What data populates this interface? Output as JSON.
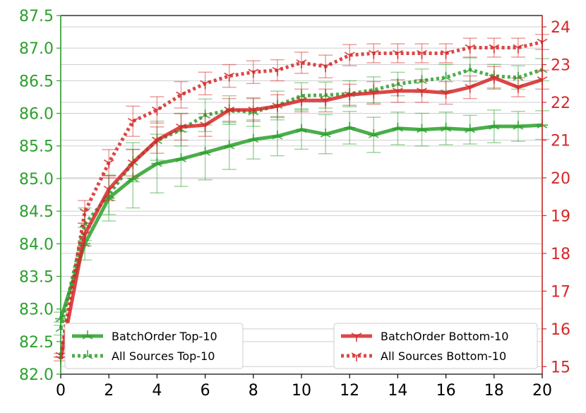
{
  "chart_data": {
    "type": "line",
    "title": "",
    "xlabel": "",
    "ylabel_left": "",
    "ylabel_right": "",
    "x": [
      0,
      1,
      2,
      3,
      4,
      5,
      6,
      7,
      8,
      9,
      10,
      11,
      12,
      13,
      14,
      15,
      16,
      17,
      18,
      19,
      20
    ],
    "xlim": [
      0,
      20
    ],
    "x_ticks": [
      0,
      2,
      4,
      6,
      8,
      10,
      12,
      14,
      16,
      18,
      20
    ],
    "ylim_left": [
      82.0,
      87.5
    ],
    "y_ticks_left": [
      82.0,
      82.5,
      83.0,
      83.5,
      84.0,
      84.5,
      85.0,
      85.5,
      86.0,
      86.5,
      87.0,
      87.5
    ],
    "ylim_right": [
      14.8,
      24.3
    ],
    "y_ticks_right": [
      15,
      16,
      17,
      18,
      19,
      20,
      21,
      22,
      23,
      24
    ],
    "grid": "horizontal",
    "colors": {
      "left_axis": "#2ca02c",
      "right_axis": "#d62728",
      "green": "#2ca02c",
      "red": "#d62728"
    },
    "series": [
      {
        "name": "BatchOrder Top-10",
        "axis": "left",
        "color": "#2ca02c",
        "style": "solid",
        "marker": "tri-x",
        "y": [
          82.85,
          84.0,
          84.7,
          85.0,
          85.23,
          85.3,
          85.4,
          85.5,
          85.6,
          85.65,
          85.75,
          85.68,
          85.78,
          85.67,
          85.77,
          85.75,
          85.77,
          85.75,
          85.8,
          85.8,
          85.82
        ],
        "err": [
          0.1,
          0.25,
          0.35,
          0.45,
          0.45,
          0.42,
          0.42,
          0.36,
          0.3,
          0.3,
          0.3,
          0.3,
          0.25,
          0.27,
          0.25,
          0.25,
          0.25,
          0.22,
          0.25,
          0.23,
          0.22
        ]
      },
      {
        "name": "All Sources Top-10",
        "axis": "left",
        "color": "#2ca02c",
        "style": "dotted",
        "marker": "tri-up",
        "y": [
          82.7,
          84.3,
          84.75,
          85.25,
          85.58,
          85.75,
          85.97,
          86.05,
          86.02,
          86.12,
          86.27,
          86.28,
          86.3,
          86.36,
          86.45,
          86.5,
          86.55,
          86.67,
          86.57,
          86.55,
          86.67
        ],
        "err": [
          0.1,
          0.25,
          0.3,
          0.3,
          0.3,
          0.25,
          0.25,
          0.22,
          0.22,
          0.22,
          0.2,
          0.2,
          0.2,
          0.2,
          0.18,
          0.18,
          0.2,
          0.18,
          0.18,
          0.18,
          0.17
        ]
      },
      {
        "name": "BatchOrder Bottom-10",
        "axis": "right",
        "color": "#d62728",
        "style": "solid",
        "marker": "tri-down",
        "y": [
          15.2,
          18.5,
          19.7,
          20.4,
          21.0,
          21.35,
          21.4,
          21.8,
          21.8,
          21.9,
          22.05,
          22.05,
          22.2,
          22.25,
          22.3,
          22.3,
          22.25,
          22.4,
          22.65,
          22.4,
          22.6
        ],
        "err": [
          0.05,
          0.3,
          0.3,
          0.35,
          0.35,
          0.35,
          0.3,
          0.3,
          0.3,
          0.3,
          0.3,
          0.3,
          0.28,
          0.3,
          0.3,
          0.3,
          0.3,
          0.3,
          0.3,
          0.25,
          0.25
        ]
      },
      {
        "name": "All Sources Bottom-10",
        "axis": "right",
        "color": "#d62728",
        "style": "dotted",
        "marker": "tri-down",
        "y": [
          15.3,
          19.1,
          20.4,
          21.5,
          21.8,
          22.2,
          22.5,
          22.7,
          22.8,
          22.85,
          23.05,
          22.95,
          23.25,
          23.3,
          23.3,
          23.3,
          23.3,
          23.45,
          23.45,
          23.45,
          23.6
        ],
        "err": [
          0.05,
          0.3,
          0.35,
          0.4,
          0.35,
          0.35,
          0.3,
          0.3,
          0.3,
          0.28,
          0.28,
          0.3,
          0.28,
          0.25,
          0.25,
          0.25,
          0.25,
          0.25,
          0.25,
          0.25,
          0.2
        ]
      }
    ],
    "legends": [
      {
        "placement": "bottom-left",
        "entries": [
          "BatchOrder Top-10",
          "All Sources Top-10"
        ]
      },
      {
        "placement": "bottom-right",
        "entries": [
          "BatchOrder Bottom-10",
          "All Sources Bottom-10"
        ]
      }
    ]
  }
}
